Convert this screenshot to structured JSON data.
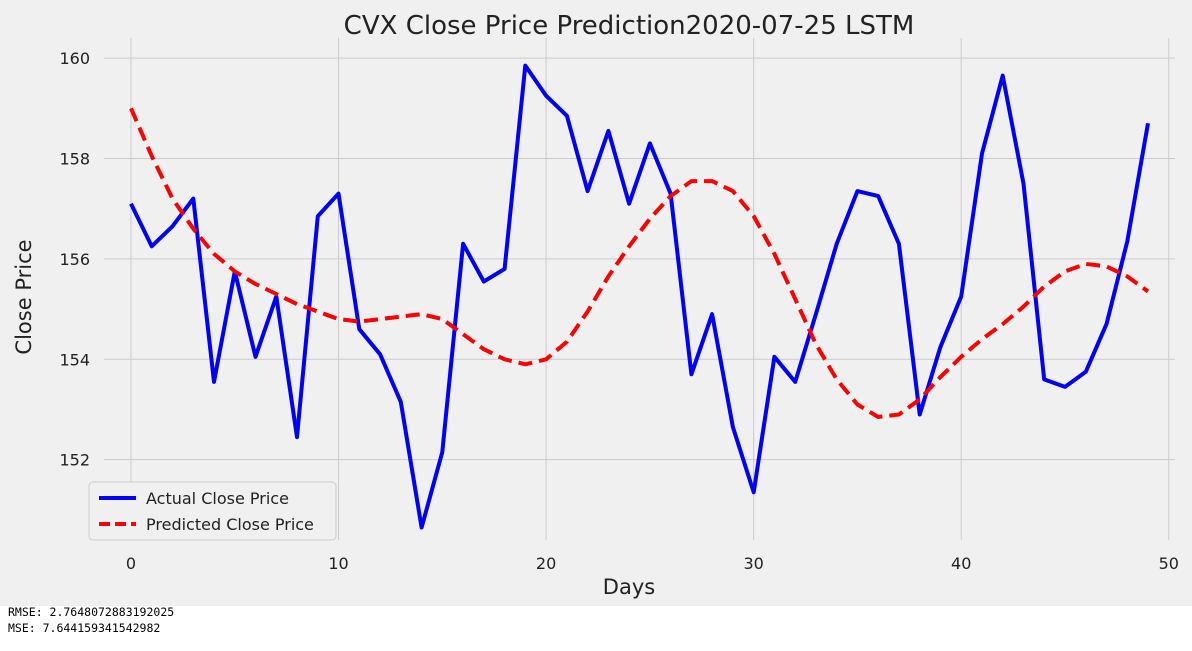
{
  "chart_data": {
    "type": "line",
    "title": "CVX Close Price Prediction2020-07-25 LSTM",
    "xlabel": "Days",
    "ylabel": "Close Price",
    "xlim": [
      -1.3,
      50.3
    ],
    "ylim": [
      150.4,
      160.4
    ],
    "xticks": [
      0,
      10,
      20,
      30,
      40,
      50
    ],
    "yticks": [
      152,
      154,
      156,
      158,
      160
    ],
    "grid": true,
    "legend_position": "lower-left",
    "series": [
      {
        "name": "Actual Close Price",
        "color": "#0000ff",
        "style": "solid",
        "x": [
          0,
          1,
          2,
          3,
          4,
          5,
          6,
          7,
          8,
          9,
          10,
          11,
          12,
          13,
          14,
          15,
          16,
          17,
          18,
          19,
          20,
          21,
          22,
          23,
          24,
          25,
          26,
          27,
          28,
          29,
          30,
          31,
          32,
          33,
          34,
          35,
          36,
          37,
          38,
          39,
          40,
          41,
          42,
          43,
          44,
          45,
          46,
          47,
          48,
          49
        ],
        "values": [
          157.1,
          156.25,
          156.65,
          157.2,
          153.55,
          155.75,
          154.05,
          155.25,
          152.45,
          156.85,
          157.3,
          154.6,
          154.1,
          153.15,
          150.65,
          152.15,
          156.3,
          155.55,
          155.8,
          159.85,
          159.25,
          158.85,
          157.35,
          158.55,
          157.1,
          158.3,
          157.3,
          153.7,
          154.9,
          152.65,
          151.35,
          154.05,
          153.55,
          154.9,
          156.3,
          157.35,
          157.25,
          156.3,
          152.9,
          154.25,
          155.25,
          158.1,
          159.65,
          157.5,
          153.6,
          153.45,
          153.75,
          154.7,
          156.35,
          158.7
        ]
      },
      {
        "name": "Predicted Close Price",
        "color": "#ff0000",
        "style": "dashed",
        "x": [
          0,
          1,
          2,
          3,
          4,
          5,
          6,
          7,
          8,
          9,
          10,
          11,
          12,
          13,
          14,
          15,
          16,
          17,
          18,
          19,
          20,
          21,
          22,
          23,
          24,
          25,
          26,
          27,
          28,
          29,
          30,
          31,
          32,
          33,
          34,
          35,
          36,
          37,
          38,
          39,
          40,
          41,
          42,
          43,
          44,
          45,
          46,
          47,
          48,
          49
        ],
        "values": [
          159.0,
          158.05,
          157.2,
          156.6,
          156.1,
          155.75,
          155.5,
          155.3,
          155.1,
          154.95,
          154.8,
          154.75,
          154.8,
          154.85,
          154.9,
          154.8,
          154.5,
          154.2,
          154.0,
          153.9,
          154.0,
          154.35,
          154.95,
          155.65,
          156.25,
          156.8,
          157.25,
          157.55,
          157.55,
          157.35,
          156.85,
          156.1,
          155.2,
          154.3,
          153.6,
          153.1,
          152.85,
          152.9,
          153.2,
          153.65,
          154.05,
          154.4,
          154.7,
          155.05,
          155.45,
          155.75,
          155.9,
          155.85,
          155.65,
          155.35
        ]
      }
    ]
  },
  "metrics": {
    "rmse": "RMSE: 2.7648072883192025",
    "mse": "MSE: 7.644159341542982"
  }
}
